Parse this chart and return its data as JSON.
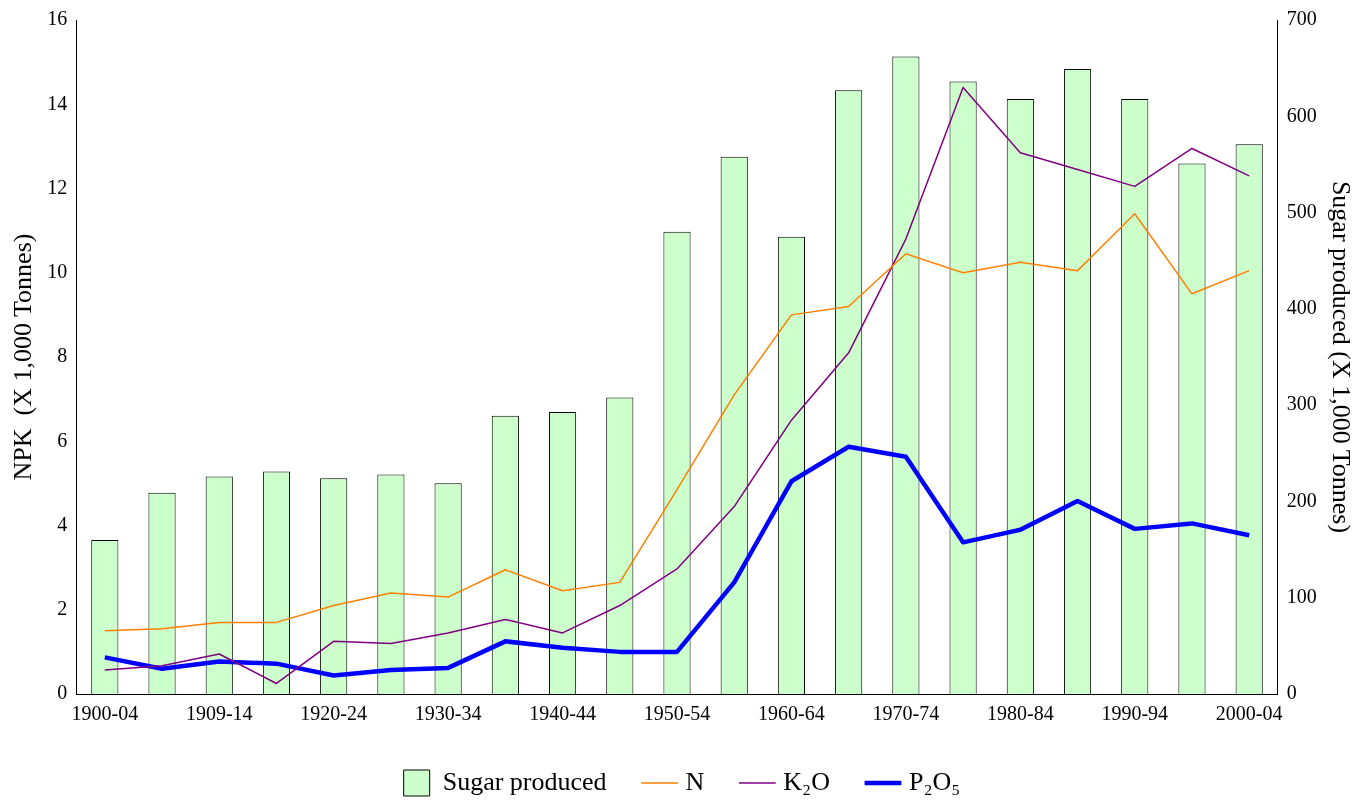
{
  "chart_data": {
    "type": "bar",
    "xlabel": null,
    "ylabel": "NPK  (X 1,000 Tonnes)",
    "y2label": "Sugar produced (X 1,000 Tonnes)",
    "categories": [
      "1900-04",
      null,
      "1909-14",
      null,
      "1920-24",
      null,
      "1930-34",
      null,
      "1940-44",
      null,
      "1950-54",
      null,
      "1960-64",
      null,
      "1970-74",
      null,
      "1980-84",
      null,
      "1990-94",
      null,
      "2000-04"
    ],
    "series": [
      {
        "name": "Sugar produced",
        "type": "bar",
        "axis": "y2",
        "color": "#ccffcc",
        "values": [
          160,
          209,
          226,
          231,
          224,
          228,
          219,
          289,
          293,
          308,
          480,
          558,
          475,
          627,
          662,
          636,
          618,
          649,
          618,
          551,
          571
        ]
      },
      {
        "name": "N",
        "type": "line",
        "color": "#ff8000",
        "values": [
          1.5,
          1.55,
          1.7,
          1.7,
          2.1,
          2.4,
          2.3,
          2.95,
          2.45,
          2.65,
          4.85,
          7.1,
          9.0,
          9.2,
          10.45,
          10.0,
          10.25,
          10.05,
          11.4,
          9.5,
          10.05
        ]
      },
      {
        "name": "K₂O",
        "type": "line",
        "color": "#800080",
        "values": [
          0.57,
          0.67,
          0.95,
          0.25,
          1.25,
          1.2,
          1.45,
          1.77,
          1.45,
          2.1,
          2.97,
          4.45,
          6.5,
          8.1,
          10.8,
          14.4,
          12.85,
          12.45,
          12.05,
          12.95,
          12.3
        ]
      },
      {
        "name": "P₂O₅",
        "type": "line",
        "color": "#0000ff",
        "values": [
          0.87,
          0.6,
          0.77,
          0.72,
          0.44,
          0.57,
          0.62,
          1.25,
          1.1,
          1.0,
          1.0,
          2.65,
          5.05,
          5.87,
          5.63,
          3.6,
          3.9,
          4.58,
          3.92,
          4.05,
          3.77
        ]
      }
    ],
    "ylim": [
      0,
      16
    ],
    "yticks": [
      0,
      2,
      4,
      6,
      8,
      10,
      12,
      14,
      16
    ],
    "y2lim": [
      0,
      700
    ],
    "y2ticks": [
      0,
      100,
      200,
      300,
      400,
      500,
      600,
      700
    ],
    "grid": false,
    "legend": "bottom",
    "marker": "none",
    "line_style": "solid"
  }
}
